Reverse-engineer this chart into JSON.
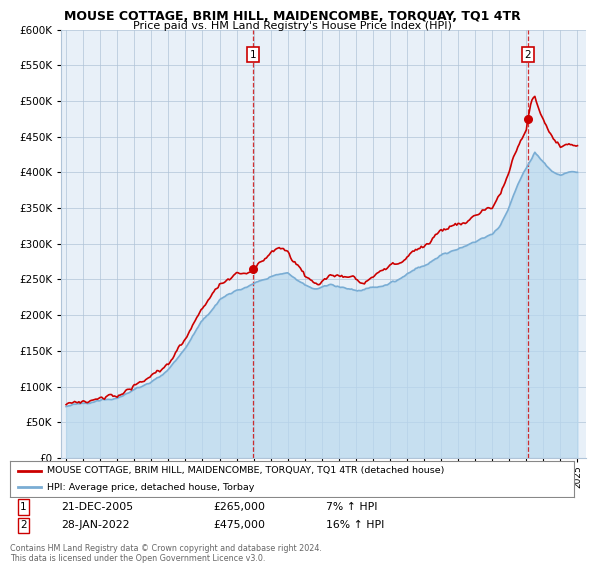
{
  "title": "MOUSE COTTAGE, BRIM HILL, MAIDENCOMBE, TORQUAY, TQ1 4TR",
  "subtitle": "Price paid vs. HM Land Registry's House Price Index (HPI)",
  "legend_line1": "MOUSE COTTAGE, BRIM HILL, MAIDENCOMBE, TORQUAY, TQ1 4TR (detached house)",
  "legend_line2": "HPI: Average price, detached house, Torbay",
  "annotation1_date": "21-DEC-2005",
  "annotation1_price": "£265,000",
  "annotation1_hpi": "7% ↑ HPI",
  "annotation2_date": "28-JAN-2022",
  "annotation2_price": "£475,000",
  "annotation2_hpi": "16% ↑ HPI",
  "footer": "Contains HM Land Registry data © Crown copyright and database right 2024.\nThis data is licensed under the Open Government Licence v3.0.",
  "red_color": "#cc0000",
  "blue_color": "#7aadd4",
  "blue_fill_color": "#b8d8ee",
  "bg_color": "#e8f0f8",
  "grid_color": "#b0c4d8",
  "sale1_year": 2005.97,
  "sale1_value": 265000,
  "sale2_year": 2022.08,
  "sale2_value": 475000,
  "ylim": [
    0,
    600000
  ],
  "yticks": [
    0,
    50000,
    100000,
    150000,
    200000,
    250000,
    300000,
    350000,
    400000,
    450000,
    500000,
    550000,
    600000
  ],
  "xstart": 1995,
  "xend": 2025
}
